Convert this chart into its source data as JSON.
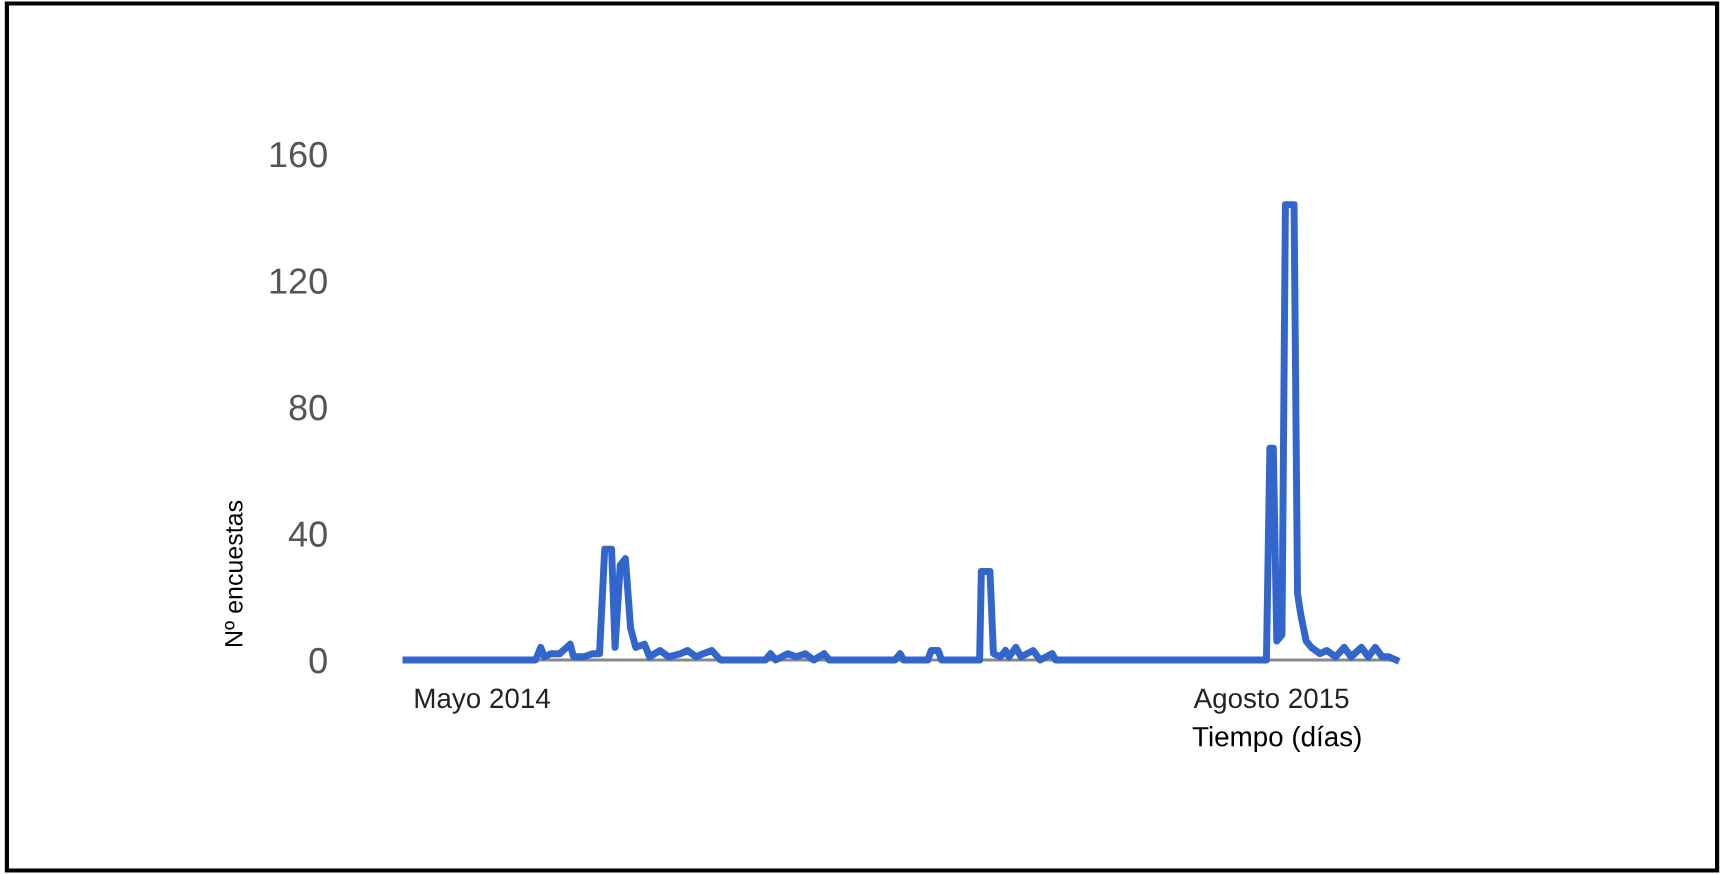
{
  "chart_data": {
    "type": "line",
    "ylabel": "Nº encuestas",
    "xlabel": "Tiempo (días)",
    "x": [
      "2014-04-01",
      "2014-06-15",
      "2014-06-18",
      "2014-06-20",
      "2014-06-24",
      "2014-06-29",
      "2014-07-05",
      "2014-07-07",
      "2014-07-13",
      "2014-07-18",
      "2014-07-22",
      "2014-07-25",
      "2014-07-29",
      "2014-07-31",
      "2014-08-03",
      "2014-08-06",
      "2014-08-09",
      "2014-08-12",
      "2014-08-17",
      "2014-08-20",
      "2014-08-26",
      "2014-08-31",
      "2014-09-07",
      "2014-09-11",
      "2014-09-16",
      "2014-09-20",
      "2014-09-25",
      "2014-09-30",
      "2014-10-26",
      "2014-10-29",
      "2014-11-01",
      "2014-11-08",
      "2014-11-13",
      "2014-11-18",
      "2014-11-23",
      "2014-11-29",
      "2014-12-02",
      "2015-01-09",
      "2015-01-12",
      "2015-01-14",
      "2015-01-28",
      "2015-01-30",
      "2015-02-03",
      "2015-02-05",
      "2015-02-27",
      "2015-02-28",
      "2015-03-05",
      "2015-03-07",
      "2015-03-11",
      "2015-03-14",
      "2015-03-16",
      "2015-03-20",
      "2015-03-23",
      "2015-03-30",
      "2015-04-03",
      "2015-04-10",
      "2015-04-12",
      "2015-08-12",
      "2015-08-14",
      "2015-08-16",
      "2015-08-18",
      "2015-08-21",
      "2015-08-23",
      "2015-08-28",
      "2015-08-30",
      "2015-09-01",
      "2015-09-04",
      "2015-09-07",
      "2015-09-12",
      "2015-09-16",
      "2015-09-21",
      "2015-09-26",
      "2015-09-30",
      "2015-10-06",
      "2015-10-10",
      "2015-10-14",
      "2015-10-18",
      "2015-10-22",
      "2015-10-26"
    ],
    "series": [
      {
        "color": "#3366cc",
        "values": [
          0,
          0,
          4,
          1,
          2,
          2,
          5,
          1,
          1,
          2,
          2,
          35,
          35,
          4,
          30,
          32,
          10,
          4,
          5,
          1,
          3,
          1,
          2,
          3,
          1,
          2,
          3,
          0,
          0,
          2,
          0,
          2,
          1,
          2,
          0,
          2,
          0,
          0,
          2,
          0,
          0,
          3,
          3,
          0,
          0,
          28,
          28,
          2,
          1,
          3,
          1,
          4,
          1,
          3,
          0,
          2,
          0,
          0,
          67,
          67,
          6,
          8,
          144,
          144,
          21,
          14,
          6,
          4,
          2,
          3,
          1,
          4,
          1,
          4,
          1,
          4,
          1,
          1,
          0
        ]
      }
    ],
    "xlim": [
      "2014-04-01",
      "2015-10-26"
    ],
    "xticks": [
      {
        "value": "2014-05-15",
        "label": "Mayo 2014"
      },
      {
        "value": "2015-08-15",
        "label": "Agosto 2015"
      }
    ],
    "ylim": [
      0,
      160
    ],
    "yticks": [
      0,
      40,
      80,
      120,
      160
    ],
    "line_style": "solid"
  }
}
